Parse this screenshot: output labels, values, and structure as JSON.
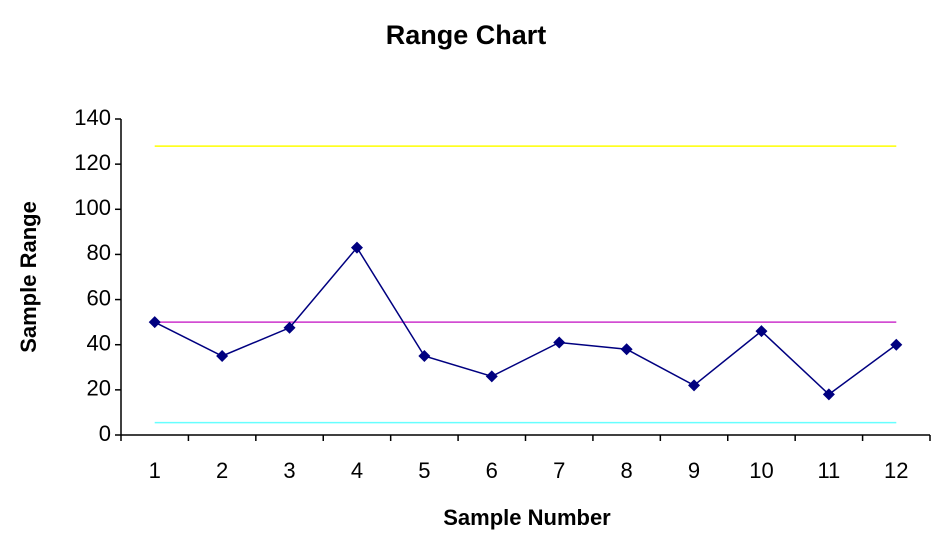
{
  "chart_data": {
    "type": "line",
    "title": "Range Chart",
    "x_label": "Sample Number",
    "y_label": "Sample Range",
    "categories": [
      "1",
      "2",
      "3",
      "4",
      "5",
      "6",
      "7",
      "8",
      "9",
      "10",
      "11",
      "12"
    ],
    "series": [
      {
        "color": "#000080",
        "marker": "diamond",
        "values": [
          50,
          35,
          47.5,
          83,
          35,
          26,
          41,
          38,
          22,
          46,
          18,
          40
        ]
      },
      {
        "color": "#ffff00",
        "values": [
          128,
          128,
          128,
          128,
          128,
          128,
          128,
          128,
          128,
          128,
          128,
          128
        ]
      },
      {
        "color": "#cc33cc",
        "values": [
          50,
          50,
          50,
          50,
          50,
          50,
          50,
          50,
          50,
          50,
          50,
          50
        ]
      },
      {
        "color": "#66ffff",
        "values": [
          5.5,
          5.5,
          5.5,
          5.5,
          5.5,
          5.5,
          5.5,
          5.5,
          5.5,
          5.5,
          5.5,
          5.5
        ]
      }
    ],
    "ylim": [
      0,
      140
    ],
    "yticks": [
      0,
      20,
      40,
      60,
      80,
      100,
      120,
      140
    ]
  }
}
